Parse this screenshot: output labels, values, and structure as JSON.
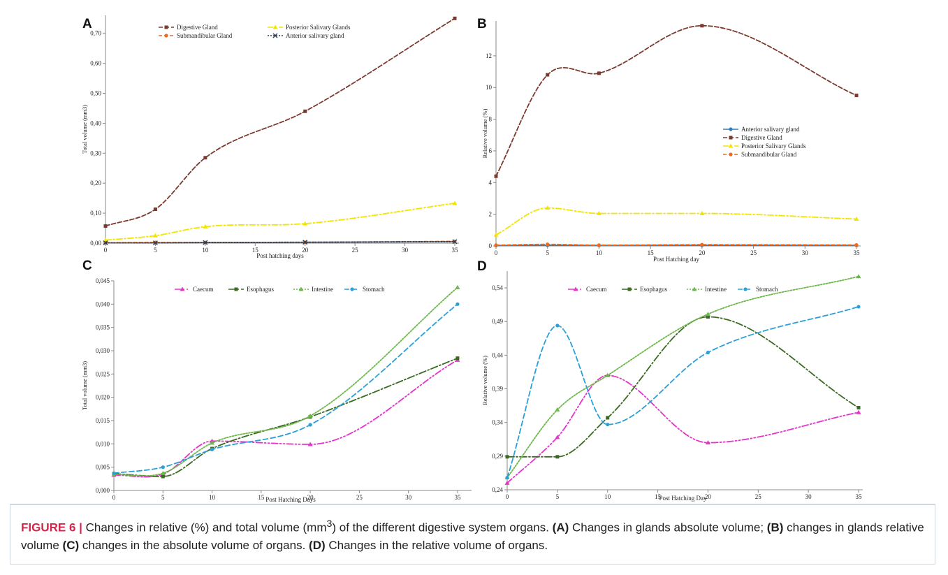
{
  "caption": {
    "figure_label": "FIGURE 6 |",
    "text1": " Changes in relative (%) and total volume (mm",
    "sup": "3",
    "text2": ") of the different digestive system organs. ",
    "a": "(A)",
    "text3": " Changes in glands absolute volume; ",
    "b": "(B)",
    "text4": " changes in glands relative volume ",
    "c": "(C)",
    "text5": " changes in the absolute volume of organs. ",
    "d": "(D)",
    "text6": " Changes in the relative volume of organs."
  },
  "chart_data": [
    {
      "panel": "A",
      "type": "line",
      "xlabel": "Post hatching days",
      "ylabel": "Total volume (mm3)",
      "xlim": [
        0,
        35
      ],
      "ylim": [
        0,
        0.76
      ],
      "xticks": [
        0,
        5,
        10,
        15,
        20,
        25,
        30,
        35
      ],
      "xtick_labels": [
        "0",
        "5",
        "10",
        "15",
        "20",
        "25",
        "30",
        "35"
      ],
      "yticks": [
        0,
        0.1,
        0.2,
        0.3,
        0.4,
        0.5,
        0.6,
        0.7
      ],
      "ytick_labels": [
        "0,00",
        "0,10",
        "0,20",
        "0,30",
        "0,40",
        "0,50",
        "0,60",
        "0,70"
      ],
      "legend_position": "top",
      "x": [
        0,
        5,
        10,
        20,
        35
      ],
      "series": [
        {
          "name": "Digestive Gland",
          "values": [
            0.057,
            0.113,
            0.285,
            0.44,
            0.75
          ],
          "color": "#7b3a2d",
          "dash": "6 3",
          "marker": "square"
        },
        {
          "name": "Posterior Salivary Glands",
          "values": [
            0.01,
            0.025,
            0.055,
            0.065,
            0.133
          ],
          "color": "#f2e600",
          "dash": "8 3 2 3",
          "marker": "triangle"
        },
        {
          "name": "Submandibular Gland",
          "values": [
            0.001,
            0.002,
            0.002,
            0.003,
            0.006
          ],
          "color": "#ee6a1f",
          "dash": "5 3",
          "marker": "circle"
        },
        {
          "name": "Anterior salivary gland",
          "values": [
            0.001,
            0.001,
            0.002,
            0.003,
            0.005
          ],
          "color": "#2d3f55",
          "dash": "2 2",
          "marker": "cross"
        }
      ]
    },
    {
      "panel": "B",
      "type": "line",
      "xlabel": "Post Hatching day",
      "ylabel": "Relative volume (%)",
      "xlim": [
        0,
        35
      ],
      "ylim": [
        0,
        14.2
      ],
      "xticks": [
        0,
        5,
        10,
        15,
        20,
        25,
        30,
        35
      ],
      "xtick_labels": [
        "0",
        "5",
        "10",
        "15",
        "20",
        "25",
        "30",
        "35"
      ],
      "yticks": [
        0,
        2,
        4,
        6,
        8,
        10,
        12
      ],
      "ytick_labels": [
        "0",
        "2",
        "4",
        "6",
        "8",
        "10",
        "12"
      ],
      "legend_position": "right",
      "x": [
        0,
        5,
        10,
        20,
        35
      ],
      "series": [
        {
          "name": "Anterior salivary gland",
          "values": [
            0.02,
            0.04,
            0.03,
            0.04,
            0.03
          ],
          "color": "#2f7fb8",
          "dash": "",
          "marker": "circle"
        },
        {
          "name": "Digestive Gland",
          "values": [
            4.4,
            10.8,
            10.9,
            13.9,
            9.5
          ],
          "color": "#7b3a2d",
          "dash": "6 3",
          "marker": "square"
        },
        {
          "name": "Posterior Salivary Glands",
          "values": [
            0.7,
            2.4,
            2.05,
            2.05,
            1.7
          ],
          "color": "#f2e600",
          "dash": "8 3 2 3",
          "marker": "triangle"
        },
        {
          "name": "Submandibular Gland",
          "values": [
            0.05,
            0.1,
            0.05,
            0.08,
            0.06
          ],
          "color": "#ee6a1f",
          "dash": "5 3",
          "marker": "circle"
        }
      ]
    },
    {
      "panel": "C",
      "type": "line",
      "xlabel": "Post Hatching Days",
      "ylabel": "Total volume (mm3)",
      "xlim": [
        0,
        36
      ],
      "ylim": [
        0,
        0.045
      ],
      "xticks": [
        0,
        5,
        10,
        15,
        20,
        25,
        30,
        35
      ],
      "xtick_labels": [
        "0",
        "5",
        "10",
        "15",
        "20",
        "25",
        "30",
        "35"
      ],
      "yticks": [
        0,
        0.005,
        0.01,
        0.015,
        0.02,
        0.025,
        0.03,
        0.035,
        0.04,
        0.045
      ],
      "ytick_labels": [
        "0,000",
        "0,005",
        "0,010",
        "0,015",
        "0,020",
        "0,025",
        "0,030",
        "0,035",
        "0,040",
        "0,045"
      ],
      "legend_position": "top",
      "x": [
        0,
        5,
        10,
        20,
        35
      ],
      "series": [
        {
          "name": "Caecum",
          "values": [
            0.0033,
            0.0035,
            0.0106,
            0.0099,
            0.028
          ],
          "color": "#e633c8",
          "dash": "9 3 2 3 2 3",
          "marker": "triangle"
        },
        {
          "name": "Esophagus",
          "values": [
            0.0036,
            0.003,
            0.009,
            0.0158,
            0.0284
          ],
          "color": "#3b6b22",
          "dash": "10 3 2 3",
          "marker": "square"
        },
        {
          "name": "Intestine",
          "values": [
            0.0034,
            0.0037,
            0.0102,
            0.016,
            0.0436
          ],
          "color": "#6cb84a",
          "dash": "2 2",
          "marker": "triangle"
        },
        {
          "name": "Stomach",
          "values": [
            0.0037,
            0.005,
            0.0088,
            0.0141,
            0.04
          ],
          "color": "#2aa0d8",
          "dash": "7 4",
          "marker": "circle"
        }
      ]
    },
    {
      "panel": "D",
      "type": "line",
      "xlabel": "Post Hatching Day",
      "ylabel": "Relative volume (%)",
      "xlim": [
        0,
        35
      ],
      "ylim": [
        0.24,
        0.565
      ],
      "xticks": [
        0,
        5,
        10,
        15,
        20,
        25,
        30,
        35
      ],
      "xtick_labels": [
        "0",
        "5",
        "10",
        "15",
        "20",
        "25",
        "30",
        "35"
      ],
      "yticks": [
        0.24,
        0.29,
        0.34,
        0.39,
        0.44,
        0.49,
        0.54
      ],
      "ytick_labels": [
        "0,24",
        "0,29",
        "0,34",
        "0,39",
        "0,44",
        "0,49",
        "0,54"
      ],
      "legend_position": "top",
      "x": [
        0,
        5,
        10,
        20,
        35
      ],
      "series": [
        {
          "name": "Caecum",
          "values": [
            0.25,
            0.318,
            0.41,
            0.31,
            0.355
          ],
          "color": "#e633c8",
          "dash": "9 3 2 3 2 3",
          "marker": "triangle"
        },
        {
          "name": "Esophagus",
          "values": [
            0.289,
            0.289,
            0.347,
            0.497,
            0.362
          ],
          "color": "#3b6b22",
          "dash": "10 3 2 3",
          "marker": "square"
        },
        {
          "name": "Intestine",
          "values": [
            0.258,
            0.359,
            0.41,
            0.501,
            0.557
          ],
          "color": "#6cb84a",
          "dash": "2 2",
          "marker": "triangle"
        },
        {
          "name": "Stomach",
          "values": [
            0.258,
            0.484,
            0.337,
            0.444,
            0.512
          ],
          "color": "#2aa0d8",
          "dash": "7 4",
          "marker": "circle"
        }
      ]
    }
  ]
}
